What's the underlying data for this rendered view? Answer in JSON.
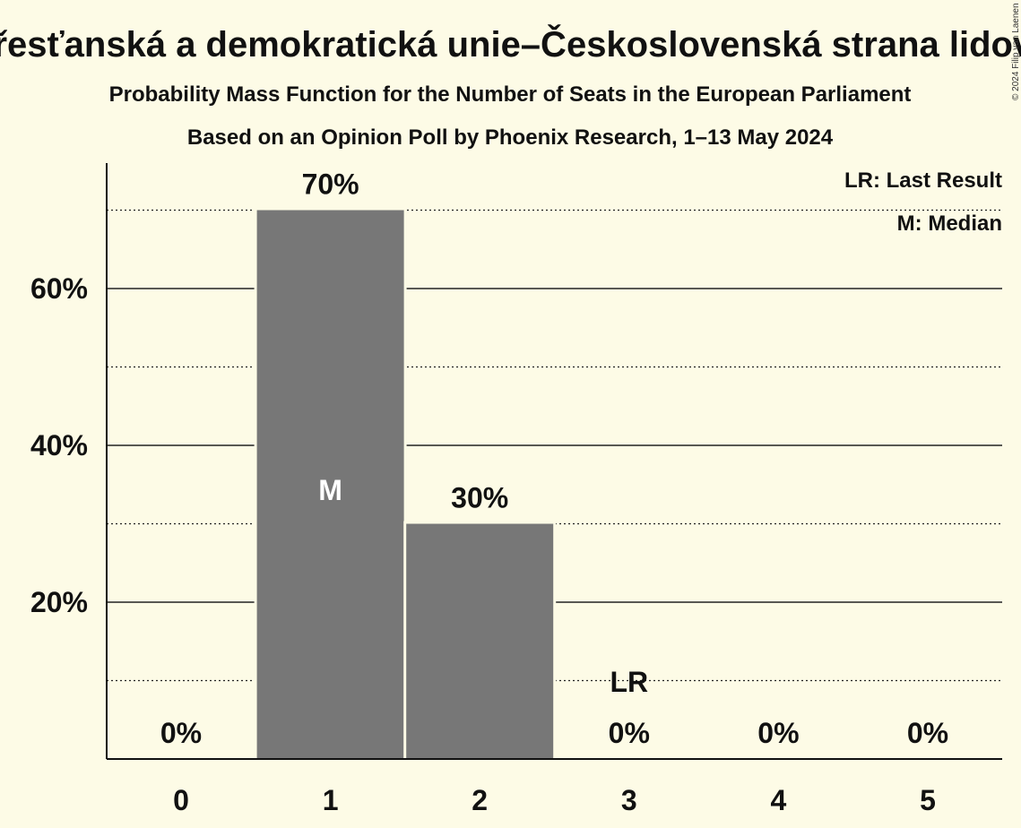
{
  "chart_data": {
    "type": "bar",
    "title": "Křesťanská a demokratická unie–Československá strana lidová",
    "subtitle": "Probability Mass Function for the Number of Seats in the European Parliament",
    "subtitle2": "Based on an Opinion Poll by Phoenix Research, 1–13 May 2024",
    "categories": [
      "0",
      "1",
      "2",
      "3",
      "4",
      "5"
    ],
    "values": [
      0,
      70,
      30,
      0,
      0,
      0
    ],
    "value_labels": [
      "0%",
      "70%",
      "30%",
      "0%",
      "0%",
      "0%"
    ],
    "ylim": [
      0,
      76
    ],
    "yticks": [
      20,
      40,
      60
    ],
    "ytick_labels": [
      "20%",
      "40%",
      "60%"
    ],
    "minor_gridlines": [
      10,
      30,
      50,
      70
    ],
    "median_index": 1,
    "median_marker": "M",
    "last_result_index": 3,
    "last_result_marker": "LR",
    "legend": [
      "LR: Last Result",
      "M: Median"
    ],
    "legend_position": "top-right",
    "bar_color": "#777777",
    "copyright": "© 2024 Filip van Laenen"
  }
}
